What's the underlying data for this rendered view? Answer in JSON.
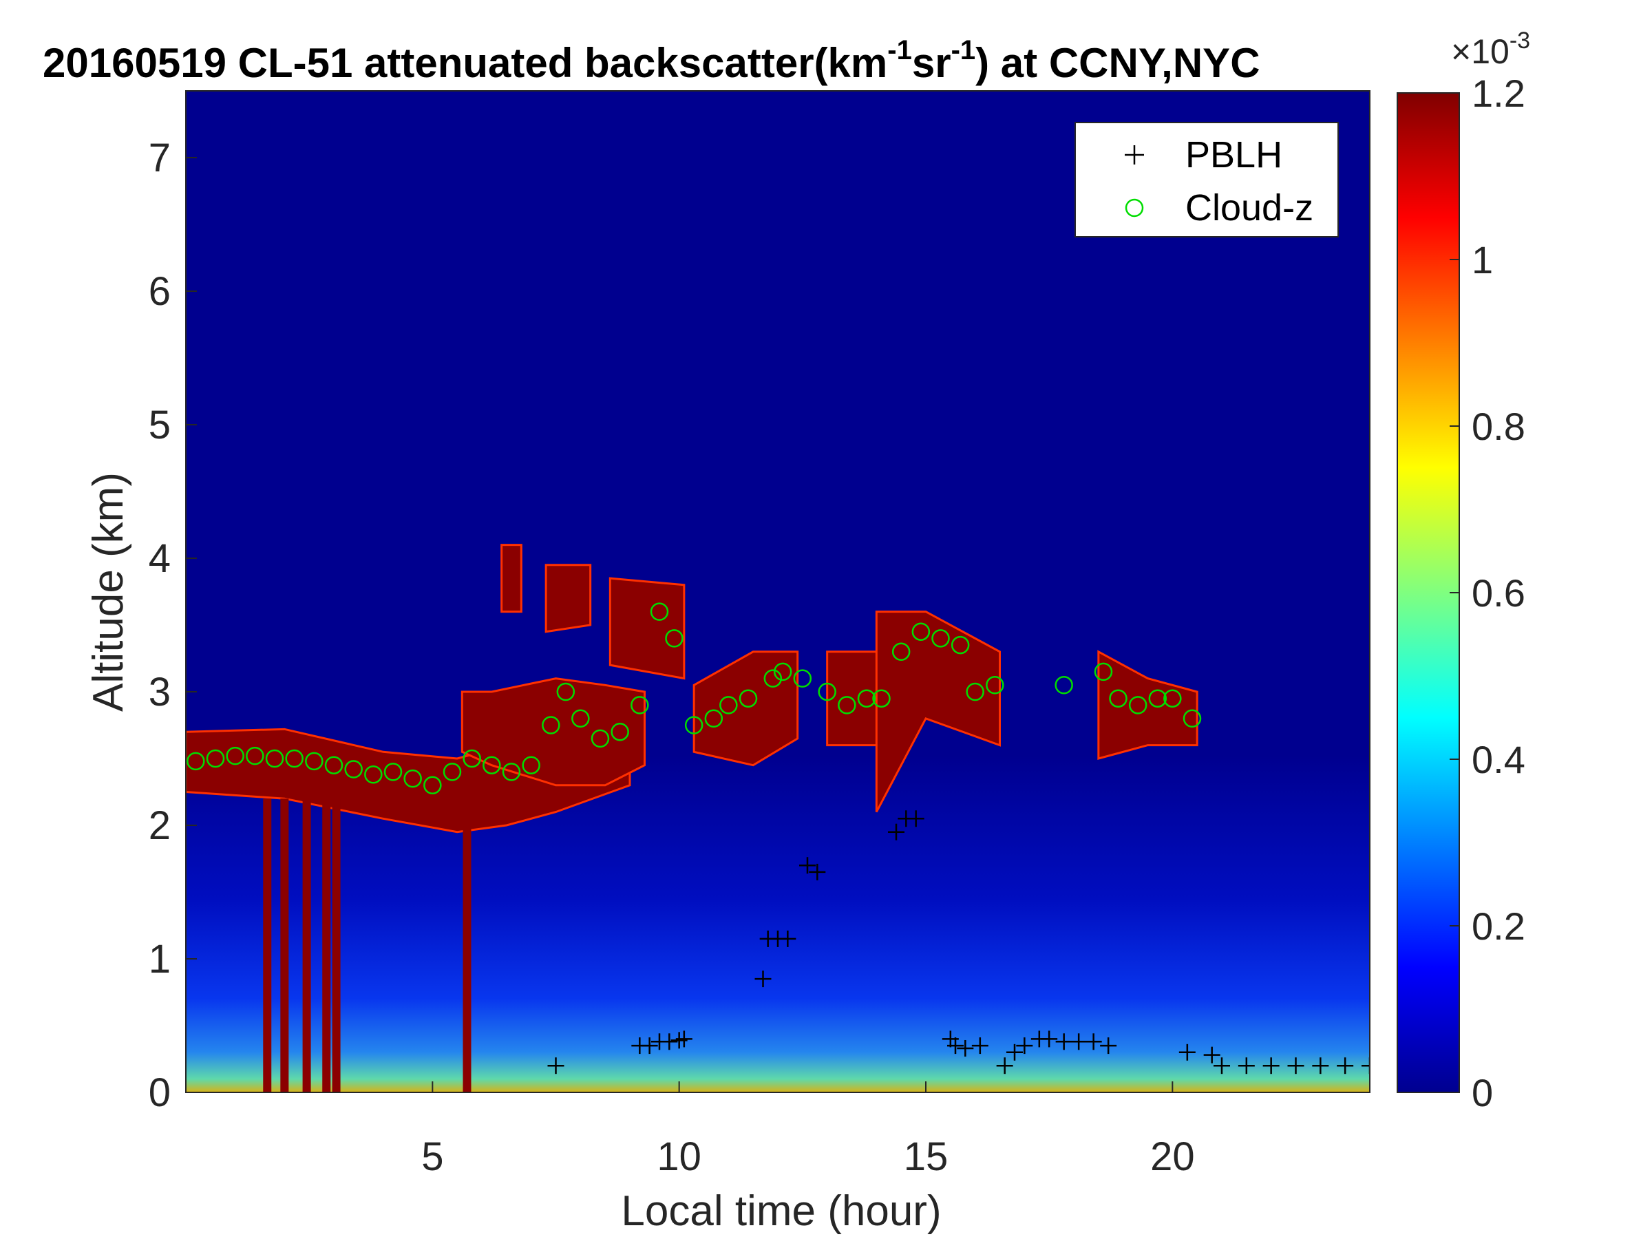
{
  "chart_data": {
    "type": "heatmap",
    "title": {
      "main": "20160519  CL-51 attenuated backscatter(km",
      "sup1": "-1",
      "mid": "sr",
      "sup2": "-1",
      "tail": ") at CCNY,NYC"
    },
    "xlabel": "Local time (hour)",
    "ylabel": "Altitude (km)",
    "xlim": [
      0,
      24
    ],
    "ylim": [
      0,
      7.5
    ],
    "xticks": [
      5,
      10,
      15,
      20
    ],
    "yticks": [
      0,
      1,
      2,
      3,
      4,
      5,
      6,
      7
    ],
    "colorbar": {
      "colormap": "jet",
      "clim": [
        0,
        0.0012
      ],
      "ticks": [
        "0",
        "0.2",
        "0.4",
        "0.6",
        "0.8",
        "1",
        "1.2"
      ],
      "ticks_values": [
        0,
        0.2,
        0.4,
        0.6,
        0.8,
        1.0,
        1.2
      ],
      "exponent": "×10",
      "exponent_power": "-3"
    },
    "legend": {
      "placement": "top-right",
      "entries": [
        {
          "label": "PBLH",
          "marker": "+",
          "color": "#000000"
        },
        {
          "label": "Cloud-z",
          "marker": "o",
          "color": "#00dd00"
        }
      ]
    },
    "cloud_layers": [
      {
        "t": [
          0,
          2,
          4,
          5.5,
          6.5,
          7.5,
          9
        ],
        "base": [
          2.25,
          2.2,
          2.05,
          1.95,
          2.0,
          2.1,
          2.3
        ],
        "top": [
          2.7,
          2.72,
          2.55,
          2.5,
          2.6,
          2.7,
          2.8
        ]
      },
      {
        "t": [
          5.6,
          6.2,
          7.5,
          8.5,
          9.3
        ],
        "base": [
          2.55,
          2.45,
          2.3,
          2.3,
          2.45
        ],
        "top": [
          3.0,
          3.0,
          3.1,
          3.05,
          3.0
        ]
      },
      {
        "t": [
          6.4,
          6.8
        ],
        "base": [
          3.6,
          3.6
        ],
        "top": [
          4.1,
          4.1
        ]
      },
      {
        "t": [
          7.3,
          8.2
        ],
        "base": [
          3.45,
          3.5
        ],
        "top": [
          3.95,
          3.95
        ]
      },
      {
        "t": [
          8.6,
          10.1
        ],
        "base": [
          3.2,
          3.1
        ],
        "top": [
          3.85,
          3.8
        ]
      },
      {
        "t": [
          10.3,
          11.5,
          12.4
        ],
        "base": [
          2.55,
          2.45,
          2.65
        ],
        "top": [
          3.05,
          3.3,
          3.3
        ]
      },
      {
        "t": [
          13.0,
          14.3
        ],
        "base": [
          2.6,
          2.6
        ],
        "top": [
          3.3,
          3.3
        ]
      },
      {
        "t": [
          14.0,
          15.0,
          16.5
        ],
        "base": [
          2.1,
          2.8,
          2.6
        ],
        "top": [
          3.6,
          3.6,
          3.3
        ]
      },
      {
        "t": [
          18.5,
          19.5,
          20.5
        ],
        "base": [
          2.5,
          2.6,
          2.6
        ],
        "top": [
          3.3,
          3.1,
          3.0
        ]
      }
    ],
    "pblh": {
      "x": [
        7.5,
        9.2,
        9.4,
        9.6,
        9.8,
        10.0,
        10.1,
        11.7,
        11.8,
        12.0,
        12.2,
        12.6,
        12.8,
        14.4,
        14.6,
        14.8,
        15.5,
        15.6,
        15.8,
        16.1,
        16.6,
        16.8,
        17.0,
        17.3,
        17.5,
        17.8,
        18.1,
        18.4,
        18.7,
        20.3,
        20.8,
        21.0,
        21.5,
        22.0,
        22.5,
        23.0,
        23.5,
        24.0
      ],
      "y": [
        0.2,
        0.35,
        0.35,
        0.38,
        0.38,
        0.39,
        0.4,
        0.85,
        1.15,
        1.15,
        1.15,
        1.7,
        1.65,
        1.95,
        2.05,
        2.05,
        0.4,
        0.35,
        0.33,
        0.35,
        0.2,
        0.3,
        0.35,
        0.4,
        0.4,
        0.38,
        0.38,
        0.38,
        0.35,
        0.3,
        0.28,
        0.2,
        0.2,
        0.2,
        0.2,
        0.2,
        0.2,
        0.2
      ]
    },
    "cloud_z": {
      "x": [
        0.2,
        0.6,
        1.0,
        1.4,
        1.8,
        2.2,
        2.6,
        3.0,
        3.4,
        3.8,
        4.2,
        4.6,
        5.0,
        5.4,
        5.8,
        6.2,
        6.6,
        7.0,
        7.4,
        7.7,
        8.0,
        8.4,
        8.8,
        9.2,
        9.6,
        9.9,
        10.3,
        10.7,
        11.0,
        11.4,
        11.9,
        12.1,
        12.5,
        13.0,
        13.4,
        13.8,
        14.1,
        14.5,
        14.9,
        15.3,
        15.7,
        16.0,
        16.4,
        17.8,
        18.6,
        18.9,
        19.3,
        19.7,
        20.0,
        20.4
      ],
      "y": [
        2.48,
        2.5,
        2.52,
        2.52,
        2.5,
        2.5,
        2.48,
        2.45,
        2.42,
        2.38,
        2.4,
        2.35,
        2.3,
        2.4,
        2.5,
        2.45,
        2.4,
        2.45,
        2.75,
        3.0,
        2.8,
        2.65,
        2.7,
        2.9,
        3.6,
        3.4,
        2.75,
        2.8,
        2.9,
        2.95,
        3.1,
        3.15,
        3.1,
        3.0,
        2.9,
        2.95,
        2.95,
        3.3,
        3.45,
        3.4,
        3.35,
        3.0,
        3.05,
        3.05,
        3.15,
        2.95,
        2.9,
        2.95,
        2.95,
        2.8
      ]
    }
  }
}
